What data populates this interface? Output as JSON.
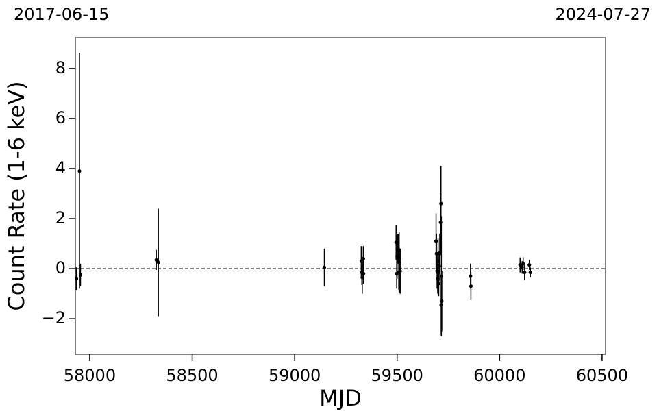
{
  "chart_data": {
    "type": "scatter",
    "annotations": [
      "2017-06-15",
      "2024-07-27"
    ],
    "xlabel": "MJD",
    "ylabel": "Count Rate (1-6 keV)",
    "xlim": [
      57930,
      60517
    ],
    "ylim": [
      -3.42,
      9.23
    ],
    "xticks": [
      58000,
      58500,
      59000,
      59500,
      60000,
      60500
    ],
    "yticks": [
      {
        "value": -2,
        "label": "−2"
      },
      0,
      2,
      4,
      6,
      8
    ],
    "reference_line": 0,
    "series": [
      {
        "color": "#000000",
        "x": [
          57935,
          57950,
          57955,
          58325,
          58335,
          59145,
          59325,
          59328,
          59330,
          59335,
          59336,
          59495,
          59498,
          59500,
          59505,
          59508,
          59510,
          59515,
          59690,
          59692,
          59695,
          59698,
          59700,
          59703,
          59705,
          59708,
          59712,
          59714,
          59716,
          59718,
          59715,
          59858,
          59860,
          60100,
          60110,
          60115,
          60122,
          60145,
          60150
        ],
        "values": [
          -0.4,
          3.9,
          -0.25,
          0.35,
          0.25,
          0.05,
          0.3,
          -0.15,
          -0.35,
          0.4,
          -0.2,
          1.05,
          -0.2,
          0.5,
          0.8,
          -0.15,
          0.25,
          -0.1,
          1.1,
          0.6,
          -0.1,
          -0.4,
          0.3,
          -0.6,
          0.1,
          0.6,
          1.85,
          2.6,
          -0.3,
          -1.3,
          -1.45,
          -0.3,
          -0.7,
          0.15,
          0.05,
          0.2,
          -0.15,
          0.15,
          -0.15
        ],
        "errors": [
          0.45,
          4.7,
          0.45,
          0.4,
          2.15,
          0.75,
          0.6,
          0.5,
          0.65,
          0.5,
          0.4,
          0.7,
          0.6,
          0.9,
          0.6,
          0.7,
          1.2,
          0.9,
          1.1,
          0.8,
          0.7,
          0.6,
          0.9,
          0.5,
          0.6,
          0.8,
          1.2,
          1.5,
          2.4,
          1.2,
          1.2,
          0.5,
          0.55,
          0.3,
          0.25,
          0.25,
          0.3,
          0.2,
          0.2
        ]
      }
    ]
  }
}
